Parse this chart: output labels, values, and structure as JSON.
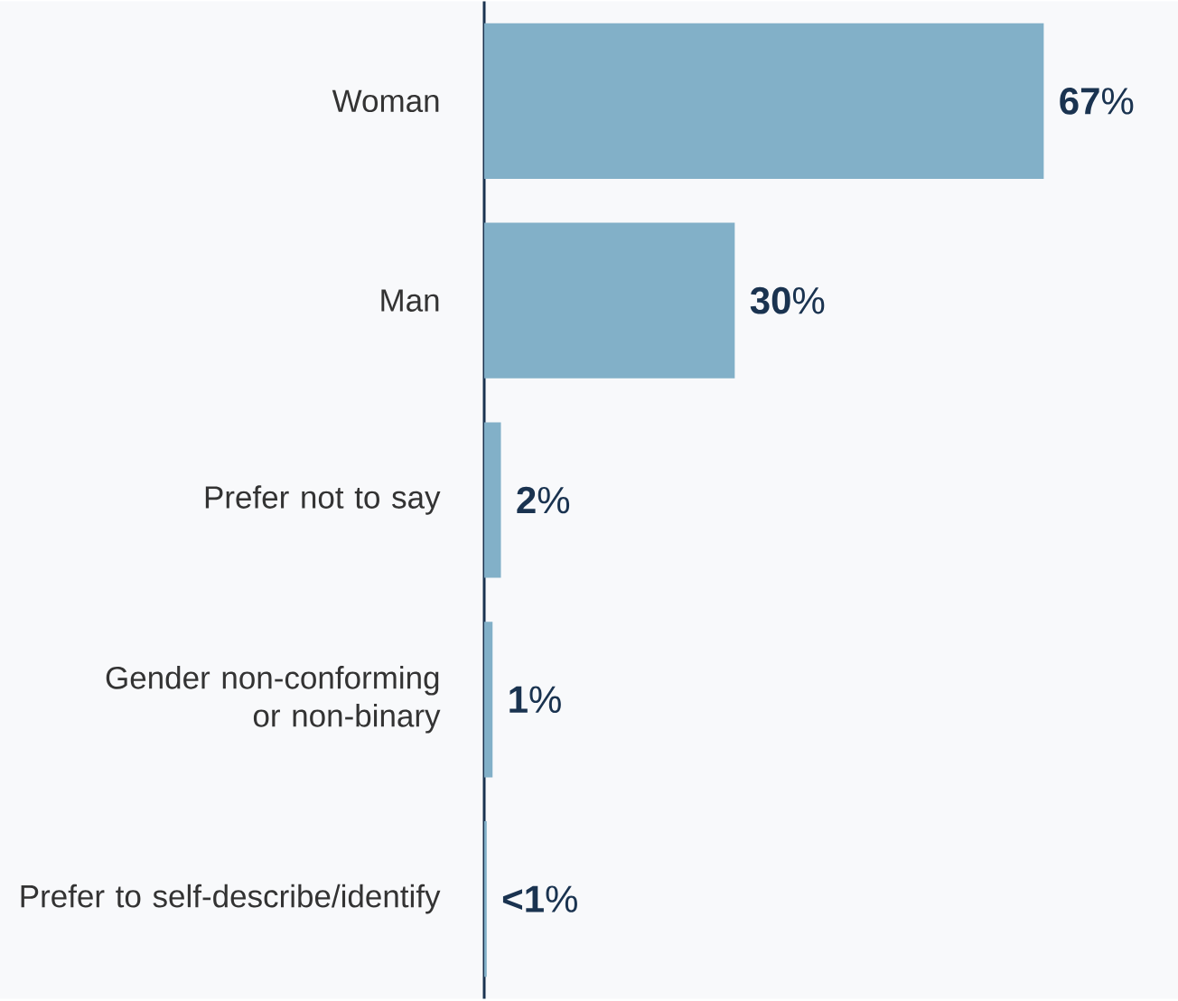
{
  "chart_data": {
    "type": "bar",
    "orientation": "horizontal",
    "categories": [
      "Woman",
      "Man",
      "Prefer not to say",
      "Gender non-conforming or non-binary",
      "Prefer to self-describe/identify"
    ],
    "values": [
      67,
      30,
      2,
      1,
      0.3
    ],
    "value_labels": [
      "**67**%",
      "**30**%",
      "**2**%",
      "**1**%",
      "**<1**%"
    ],
    "color": "#82b0c8"
  }
}
